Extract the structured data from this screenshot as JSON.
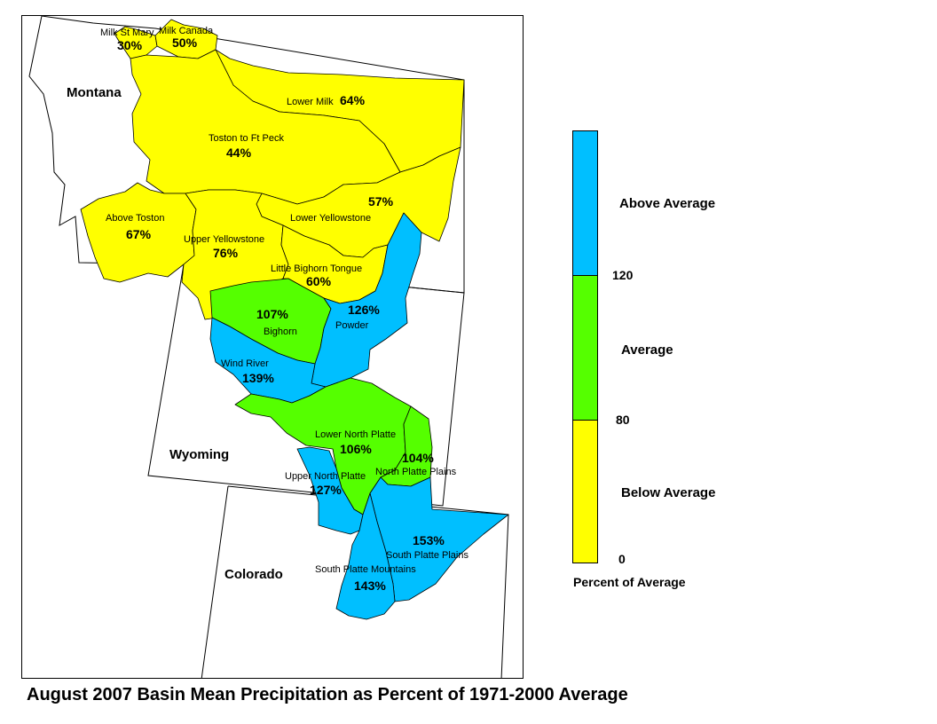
{
  "colors": {
    "above": "#00bfff",
    "average": "#55ff00",
    "below": "#ffff00"
  },
  "states": {
    "montana": "Montana",
    "wyoming": "Wyoming",
    "colorado": "Colorado"
  },
  "basins": [
    {
      "id": "milk-st-mary",
      "name": "Milk St Mary",
      "percent": "30%",
      "category": "below"
    },
    {
      "id": "milk-canada",
      "name": "Milk Canada",
      "percent": "50%",
      "category": "below"
    },
    {
      "id": "lower-milk",
      "name": "Lower Milk",
      "percent": "64%",
      "category": "below"
    },
    {
      "id": "toston-to-ft-peck",
      "name": "Toston to Ft Peck",
      "percent": "44%",
      "category": "below"
    },
    {
      "id": "lower-yellowstone",
      "name": "Lower Yellowstone",
      "percent": "57%",
      "category": "below"
    },
    {
      "id": "above-toston",
      "name": "Above Toston",
      "percent": "67%",
      "category": "below"
    },
    {
      "id": "upper-yellowstone",
      "name": "Upper Yellowstone",
      "percent": "76%",
      "category": "below"
    },
    {
      "id": "little-bighorn-tongue",
      "name": "Little Bighorn Tongue",
      "percent": "60%",
      "category": "below"
    },
    {
      "id": "bighorn",
      "name": "Bighorn",
      "percent": "107%",
      "category": "average"
    },
    {
      "id": "powder",
      "name": "Powder",
      "percent": "126%",
      "category": "above"
    },
    {
      "id": "wind-river",
      "name": "Wind River",
      "percent": "139%",
      "category": "above"
    },
    {
      "id": "lower-north-platte",
      "name": "Lower North Platte",
      "percent": "106%",
      "category": "average"
    },
    {
      "id": "north-platte-plains",
      "name": "North Platte Plains",
      "percent": "104%",
      "category": "average"
    },
    {
      "id": "upper-north-platte",
      "name": "Upper North Platte",
      "percent": "127%",
      "category": "above"
    },
    {
      "id": "south-platte-plains",
      "name": "South Platte Plains",
      "percent": "153%",
      "category": "above"
    },
    {
      "id": "south-platte-mountains",
      "name": "South Platte Mountains",
      "percent": "143%",
      "category": "above"
    }
  ],
  "legend": {
    "title": "Percent of Average",
    "classes": [
      {
        "label": "Above Average",
        "color": "#00bfff",
        "range": [
          120,
          null
        ]
      },
      {
        "label": "Average",
        "color": "#55ff00",
        "range": [
          80,
          120
        ]
      },
      {
        "label": "Below Average",
        "color": "#ffff00",
        "range": [
          0,
          80
        ]
      }
    ],
    "ticks": [
      "120",
      "80",
      "0"
    ]
  },
  "caption": "August 2007 Basin Mean Precipitation as Percent of 1971-2000 Average"
}
